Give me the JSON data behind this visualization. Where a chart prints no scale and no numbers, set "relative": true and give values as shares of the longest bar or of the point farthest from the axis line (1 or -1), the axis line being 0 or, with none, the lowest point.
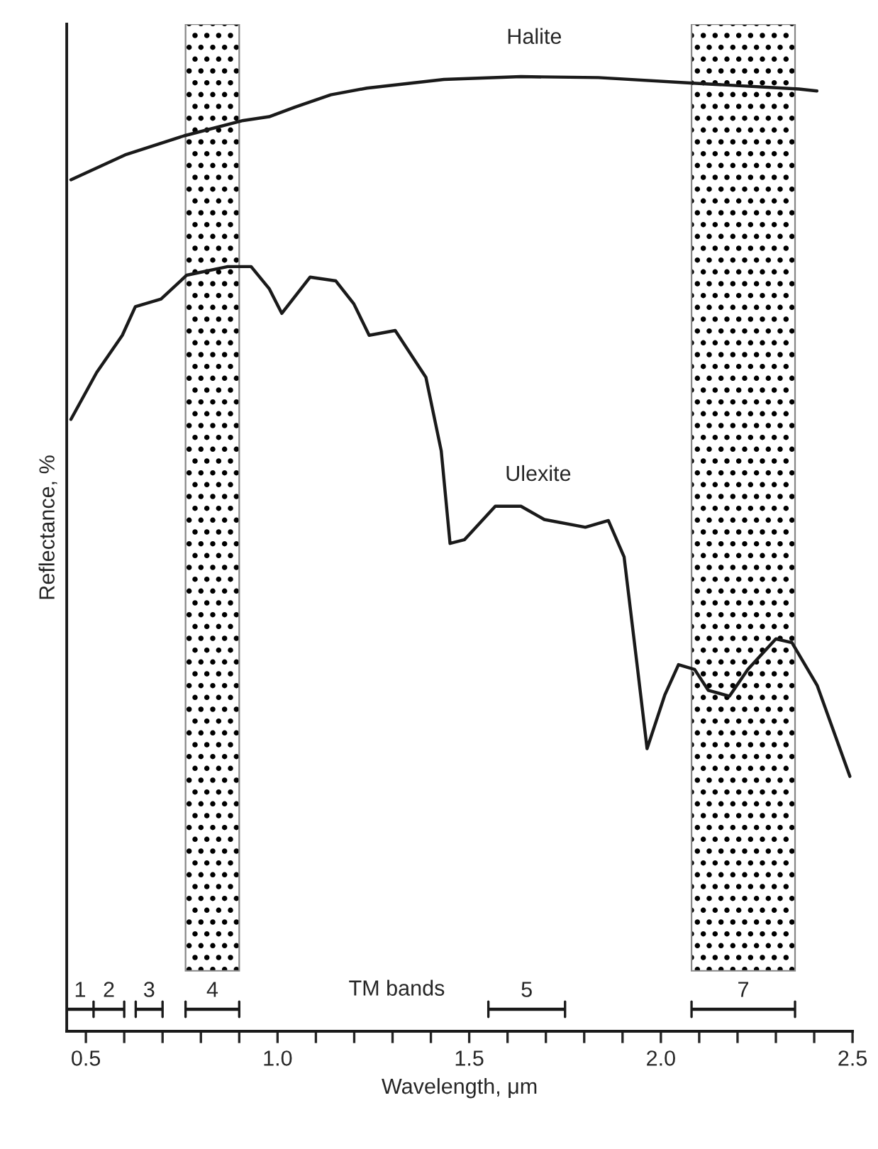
{
  "chart_data": {
    "type": "line",
    "relative": true,
    "xlabel": "Wavelength, μm",
    "ylabel": "Reflectance, %",
    "xlim": [
      0.45,
      2.5
    ],
    "xticks": [
      {
        "value": 0.5,
        "label": "0.5"
      },
      {
        "value": 0.6,
        "label": null
      },
      {
        "value": 0.7,
        "label": null
      },
      {
        "value": 0.8,
        "label": null
      },
      {
        "value": 0.9,
        "label": null
      },
      {
        "value": 1.0,
        "label": "1.0"
      },
      {
        "value": 1.1,
        "label": null
      },
      {
        "value": 1.2,
        "label": null
      },
      {
        "value": 1.3,
        "label": null
      },
      {
        "value": 1.4,
        "label": null
      },
      {
        "value": 1.5,
        "label": "1.5"
      },
      {
        "value": 1.6,
        "label": null
      },
      {
        "value": 1.7,
        "label": null
      },
      {
        "value": 1.8,
        "label": null
      },
      {
        "value": 1.9,
        "label": null
      },
      {
        "value": 2.0,
        "label": "2.0"
      },
      {
        "value": 2.1,
        "label": null
      },
      {
        "value": 2.2,
        "label": null
      },
      {
        "value": 2.3,
        "label": null
      },
      {
        "value": 2.4,
        "label": null
      },
      {
        "value": 2.5,
        "label": "2.5"
      }
    ],
    "series": [
      {
        "name": "Halite",
        "color": "#1a1a1a",
        "x": [
          0.461,
          0.602,
          0.756,
          0.91,
          0.978,
          1.045,
          1.139,
          1.233,
          1.434,
          1.635,
          1.837,
          2.092,
          2.36,
          2.407
        ],
        "values": [
          0.892,
          0.918,
          0.938,
          0.954,
          0.958,
          0.968,
          0.981,
          0.988,
          0.997,
          1.0,
          0.999,
          0.993,
          0.987,
          0.985
        ]
      },
      {
        "name": "Ulexite",
        "color": "#1a1a1a",
        "x": [
          0.461,
          0.528,
          0.595,
          0.629,
          0.696,
          0.763,
          0.87,
          0.931,
          0.978,
          1.011,
          1.085,
          1.152,
          1.199,
          1.239,
          1.307,
          1.387,
          1.427,
          1.45,
          1.488,
          1.568,
          1.635,
          1.696,
          1.803,
          1.863,
          1.904,
          1.937,
          1.964,
          2.01,
          2.046,
          2.088,
          2.124,
          2.179,
          2.227,
          2.3,
          2.342,
          2.408,
          2.493
        ],
        "values": [
          0.641,
          0.69,
          0.729,
          0.759,
          0.767,
          0.792,
          0.801,
          0.801,
          0.778,
          0.752,
          0.79,
          0.786,
          0.762,
          0.729,
          0.734,
          0.685,
          0.608,
          0.511,
          0.515,
          0.55,
          0.55,
          0.536,
          0.528,
          0.535,
          0.497,
          0.387,
          0.296,
          0.352,
          0.384,
          0.379,
          0.357,
          0.351,
          0.379,
          0.411,
          0.407,
          0.362,
          0.267
        ]
      },
      {
        "color": "#1a1a1a",
        "x": [
          0.45,
          0.52,
          0.6
        ],
        "values": [
          0.023,
          0.023,
          0.023
        ]
      },
      {
        "color": "#1a1a1a",
        "x": [
          0.63,
          0.7
        ],
        "values": [
          0.023,
          0.023
        ]
      },
      {
        "color": "#1a1a1a",
        "x": [
          0.76,
          0.9
        ],
        "values": [
          0.023,
          0.023
        ]
      },
      {
        "color": "#1a1a1a",
        "x": [
          1.55,
          1.75
        ],
        "values": [
          0.023,
          0.023
        ]
      },
      {
        "color": "#1a1a1a",
        "x": [
          2.08,
          2.35
        ],
        "values": [
          0.023,
          0.023
        ]
      }
    ],
    "bands": [
      {
        "axis": "x",
        "from": 0.76,
        "to": 0.9,
        "color": "#000000"
      },
      {
        "axis": "x",
        "from": 2.08,
        "to": 2.35,
        "color": "#000000"
      }
    ],
    "annotations": [
      "TM bands",
      {
        "text": "1",
        "x": 0.485,
        "y": 0.023
      },
      {
        "text": "2",
        "x": 0.56,
        "y": 0.023
      },
      {
        "text": "3",
        "x": 0.665,
        "y": 0.023
      },
      {
        "text": "4",
        "x": 0.83,
        "y": 0.023
      },
      {
        "text": "5",
        "x": 1.65,
        "y": 0.023
      },
      {
        "text": "7",
        "x": 2.215,
        "y": 0.023
      }
    ],
    "grid": false,
    "legend": false
  }
}
